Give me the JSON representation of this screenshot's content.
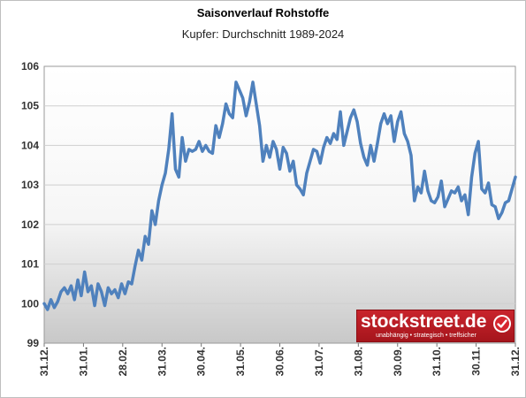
{
  "chart_data": {
    "type": "line",
    "title": "Saisonverlauf Rohstoffe",
    "subtitle": "Kupfer: Durchschnitt 1989-2024",
    "xlabel": "",
    "ylabel": "",
    "ylim": [
      99,
      106
    ],
    "yticks": [
      "99",
      "100",
      "101",
      "102",
      "103",
      "104",
      "105",
      "106"
    ],
    "xticks": [
      "31.12.",
      "31.01.",
      "28.02.",
      "31.03.",
      "30.04.",
      "31.05.",
      "30.06.",
      "31.07.",
      "31.08.",
      "30.09.",
      "31.10.",
      "30.11.",
      "31.12."
    ],
    "grid": true,
    "legend": "none",
    "color": "#4f81bd",
    "series": [
      {
        "values": [
          100,
          99.85,
          100.1,
          99.9,
          100.05,
          100.3,
          100.4,
          100.25,
          100.45,
          100.1,
          100.6,
          100.2,
          100.8,
          100.3,
          100.45,
          99.95,
          100.5,
          100.3,
          99.95,
          100.4,
          100.25,
          100.35,
          100.15,
          100.5,
          100.25,
          100.55,
          100.5,
          100.95,
          101.35,
          101.1,
          101.7,
          101.5,
          102.35,
          102.0,
          102.6,
          103.0,
          103.3,
          103.9,
          104.8,
          103.4,
          103.2,
          104.2,
          103.6,
          103.9,
          103.85,
          103.9,
          104.1,
          103.85,
          104.0,
          103.85,
          103.8,
          104.5,
          104.2,
          104.55,
          105.05,
          104.8,
          104.7,
          105.6,
          105.4,
          105.2,
          104.75,
          105.1,
          105.6,
          105.05,
          104.5,
          103.6,
          104.0,
          103.7,
          104.1,
          103.9,
          103.4,
          103.95,
          103.8,
          103.35,
          103.6,
          103.0,
          102.9,
          102.75,
          103.3,
          103.6,
          103.9,
          103.85,
          103.55,
          103.95,
          104.2,
          104.05,
          104.3,
          104.15,
          104.85,
          104.0,
          104.35,
          104.7,
          104.9,
          104.6,
          104.05,
          103.7,
          103.5,
          104.0,
          103.6,
          104.05,
          104.55,
          104.8,
          104.55,
          104.75,
          104.1,
          104.6,
          104.85,
          104.3,
          104.1,
          103.75,
          102.6,
          102.95,
          102.8,
          103.35,
          102.85,
          102.6,
          102.55,
          102.7,
          103.1,
          102.45,
          102.65,
          102.85,
          102.8,
          102.95,
          102.6,
          102.75,
          102.25,
          103.2,
          103.8,
          104.1,
          102.9,
          102.8,
          103.05,
          102.5,
          102.45,
          102.15,
          102.3,
          102.55,
          102.6,
          102.9,
          103.2
        ]
      }
    ]
  },
  "watermark": {
    "name": "stockstreet.de",
    "tagline": "unabhängig • strategisch • treffsicher"
  }
}
